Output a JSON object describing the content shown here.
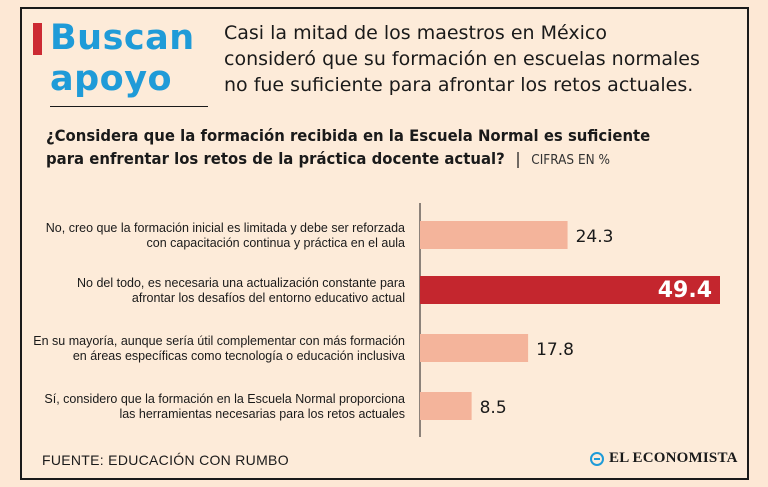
{
  "headline": {
    "line1": "Buscan",
    "line2": "apoyo"
  },
  "intro": {
    "line1": "Casi la mitad de los maestros en México",
    "line2": "consideró que su formación en escuelas normales",
    "line3": "no fue suficiente para afrontar los retos actuales."
  },
  "question": {
    "line1": "¿Considera que la formación recibida en la Escuela Normal es suficiente",
    "line2": "para enfrentar los retos de la práctica docente actual?",
    "separator": "|",
    "units": "CIFRAS EN %"
  },
  "colors": {
    "accent_bar": "#cc2a33",
    "headline": "#1f9bd8",
    "bar_default": "#f4b49b",
    "bar_highlight": "#c4262e",
    "label_default": "#1a1a1a",
    "label_highlight": "#ffffff"
  },
  "chart_data": {
    "type": "bar",
    "orientation": "horizontal",
    "categories": [
      [
        "No, creo que la formación inicial es limitada y debe ser reforzada",
        "con capacitación continua y práctica en el aula"
      ],
      [
        "No del todo, es necesaria una actualización constante para",
        "afrontar los desafíos del entorno educativo actual"
      ],
      [
        "En su mayoría, aunque sería útil complementar con más formación",
        "en áreas específicas como tecnología o educación inclusiva"
      ],
      [
        "Sí, considero que la formación en la Escuela Normal proporciona",
        "las herramientas necesarias para los retos actuales"
      ]
    ],
    "values": [
      24.3,
      49.4,
      17.8,
      8.5
    ],
    "value_labels": [
      "24.3",
      "49.4",
      "17.8",
      "8.5"
    ],
    "highlight_index": 1,
    "xlim": [
      0,
      49.4
    ]
  },
  "footer": {
    "source": "FUENTE: EDUCACIÓN CON RUMBO",
    "brand": "EL ECONOMISTA",
    "brand_icon": "globe-icon"
  }
}
